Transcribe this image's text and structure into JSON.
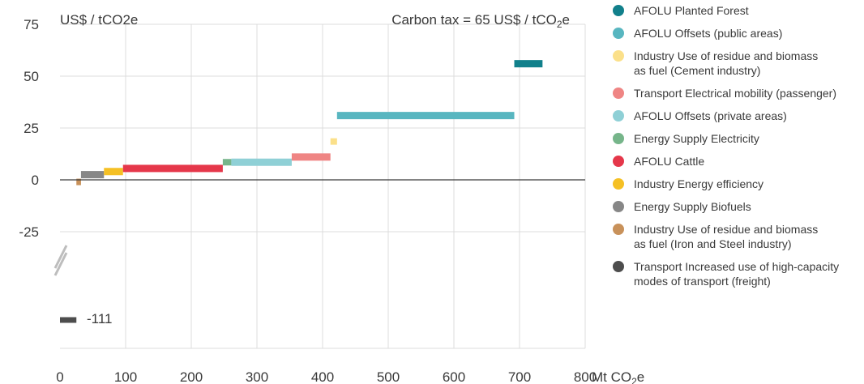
{
  "chart_data": {
    "type": "bar",
    "subtype": "marginal-abatement-cost-curve",
    "y_unit_label": "US$ / tCO2e",
    "x_unit_label": "Mt CO",
    "x_unit_sub": "2",
    "x_unit_suffix": "e",
    "annotation": {
      "prefix": "Carbon tax = 65 US$ / tCO",
      "sub": "2",
      "suffix": "e"
    },
    "xlim": [
      0,
      800
    ],
    "ylim": [
      -80,
      75
    ],
    "x_ticks": [
      0,
      100,
      200,
      300,
      400,
      500,
      600,
      700,
      800
    ],
    "y_ticks": [
      75,
      50,
      25,
      0,
      -25
    ],
    "axis_break": true,
    "outlier_label": "-111",
    "grid": true,
    "legend_position": "right",
    "series": [
      {
        "name": "Transport Increased use of high-capacity\nmodes of transport (freight)",
        "color": "#4d4d4d",
        "x_start": 0,
        "x_end": 25,
        "cost": -111
      },
      {
        "name": "Industry Use of residue and biomass\nas fuel (Iron and Steel industry)",
        "color": "#c8915a",
        "x_start": 25,
        "x_end": 32,
        "cost": -1
      },
      {
        "name": "Energy Supply Biofuels",
        "color": "#878787",
        "x_start": 32,
        "x_end": 67,
        "cost": 2.5
      },
      {
        "name": "Industry Energy efficiency",
        "color": "#f5c024",
        "x_start": 67,
        "x_end": 96,
        "cost": 4
      },
      {
        "name": "AFOLU Cattle",
        "color": "#e5374a",
        "x_start": 96,
        "x_end": 248,
        "cost": 5.5
      },
      {
        "name": "Energy Supply Electricity",
        "color": "#76b58a",
        "x_start": 248,
        "x_end": 261,
        "cost": 8.5
      },
      {
        "name": "AFOLU Offsets (private areas)",
        "color": "#8fd0d6",
        "x_start": 261,
        "x_end": 353,
        "cost": 8.5
      },
      {
        "name": "Transport Electrical mobility (passenger)",
        "color": "#ef8584",
        "x_start": 353,
        "x_end": 412,
        "cost": 11
      },
      {
        "name": "Industry Use of residue and biomass\nas fuel (Cement industry)",
        "color": "#fbe08a",
        "x_start": 412,
        "x_end": 422,
        "cost": 18.5
      },
      {
        "name": "AFOLU Offsets (public areas)",
        "color": "#58b6c0",
        "x_start": 422,
        "x_end": 692,
        "cost": 31
      },
      {
        "name": "AFOLU Planted Forest",
        "color": "#11808b",
        "x_start": 692,
        "x_end": 735,
        "cost": 56
      }
    ],
    "legend_order": [
      10,
      9,
      8,
      7,
      6,
      5,
      4,
      3,
      2,
      1,
      0
    ]
  }
}
